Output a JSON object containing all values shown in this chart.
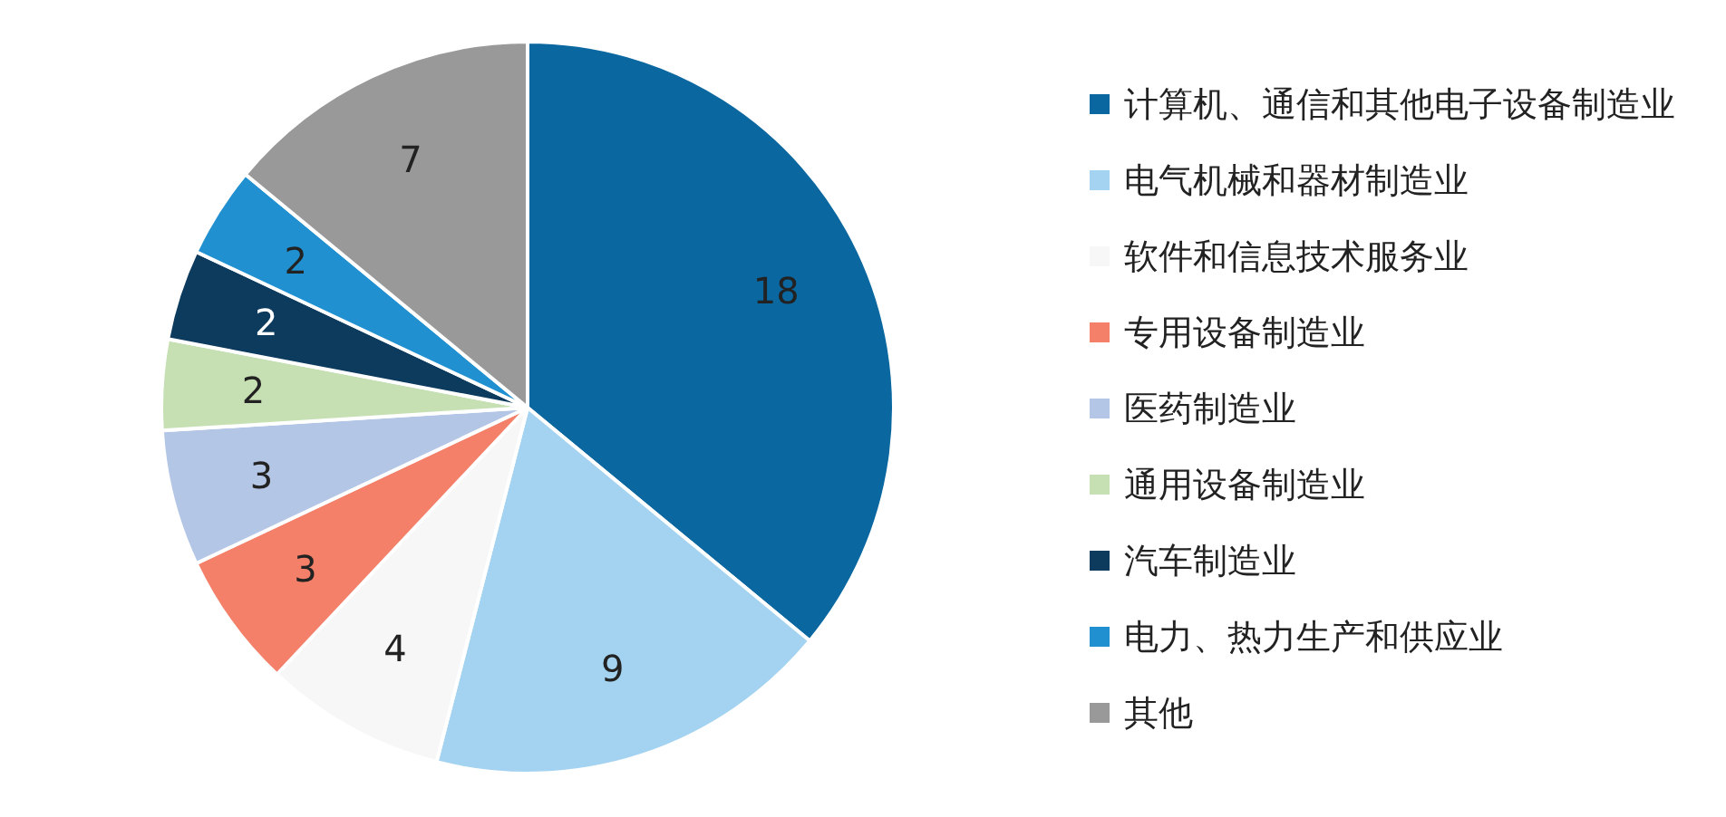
{
  "chart_data": {
    "type": "pie",
    "categories": [
      "计算机、通信和其他电子设备制造业",
      "电气机械和器材制造业",
      "软件和信息技术服务业",
      "专用设备制造业",
      "医药制造业",
      "通用设备制造业",
      "汽车制造业",
      "电力、热力生产和供应业",
      "其他"
    ],
    "values": [
      18,
      9,
      4,
      3,
      3,
      2,
      2,
      2,
      7
    ],
    "colors": [
      "#0a67a0",
      "#a3d3f0",
      "#f7f7f7",
      "#f4806a",
      "#b4c6e6",
      "#c6e0b4",
      "#0c3b5e",
      "#2090d0",
      "#999999"
    ],
    "data_labels": true,
    "legend": "right"
  }
}
